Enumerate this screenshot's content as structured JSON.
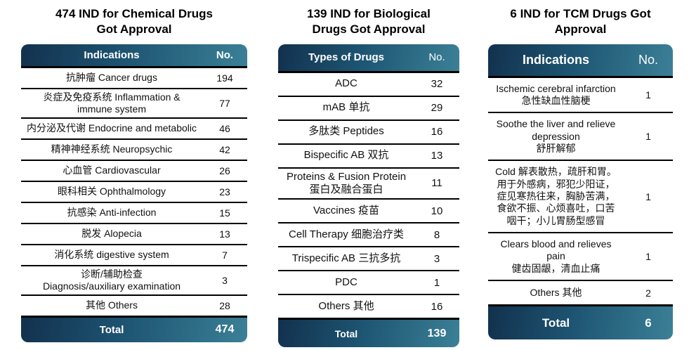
{
  "colors": {
    "gradient_dark": "#12314e",
    "gradient_mid": "#1d5471",
    "gradient_light": "#3b8097",
    "header_text": "#ffffff",
    "line": "#000000",
    "title_text": "#000000"
  },
  "chart_data": [
    {
      "type": "table",
      "title": "474 IND for Chemical Drugs Got Approval",
      "columns": {
        "label": "Indications",
        "no": "No."
      },
      "rows": [
        {
          "label": "抗肿瘤 Cancer drugs",
          "no": "194"
        },
        {
          "label": "炎症及免疫系统 Inflammation & immune system",
          "no": "77"
        },
        {
          "label": "内分泌及代谢 Endocrine and metabolic",
          "no": "46"
        },
        {
          "label": "精神神经系统 Neuropsychic",
          "no": "42"
        },
        {
          "label": "心血管 Cardiovascular",
          "no": "26"
        },
        {
          "label": "眼科相关 Ophthalmology",
          "no": "23"
        },
        {
          "label": "抗感染 Anti-infection",
          "no": "15"
        },
        {
          "label": "脱发 Alopecia",
          "no": "13"
        },
        {
          "label": "消化系统 digestive system",
          "no": "7"
        },
        {
          "label": "诊断/辅助检查",
          "sub": "Diagnosis/auxiliary examination",
          "no": "3"
        },
        {
          "label": "其他 Others",
          "no": "28"
        }
      ],
      "total": {
        "label": "Total",
        "no": "474"
      }
    },
    {
      "type": "table",
      "title": "139 IND for Biological Drugs Got Approval",
      "columns": {
        "label": "Types of Drugs",
        "no": "No."
      },
      "rows": [
        {
          "label": "ADC",
          "no": "32"
        },
        {
          "label": "mAB 单抗",
          "no": "29"
        },
        {
          "label": "多肽类 Peptides",
          "no": "16"
        },
        {
          "label": "Bispecific AB 双抗",
          "no": "13"
        },
        {
          "label": "Proteins & Fusion Protein",
          "sub": "蛋白及融合蛋白",
          "no": "11"
        },
        {
          "label": "Vaccines 疫苗",
          "no": "10"
        },
        {
          "label": "Cell Therapy 细胞治疗类",
          "no": "8"
        },
        {
          "label": "Trispecific AB 三抗多抗",
          "no": "3"
        },
        {
          "label": "PDC",
          "no": "1"
        },
        {
          "label": "Others 其他",
          "no": "16"
        }
      ],
      "total": {
        "label": "Total",
        "no": "139"
      }
    },
    {
      "type": "table",
      "title": "6 IND for TCM Drugs Got Approval",
      "columns": {
        "label": "Indications",
        "no": "No."
      },
      "rows": [
        {
          "label": "Ischemic cerebral infarction",
          "sub": "急性缺血性脑梗",
          "no": "1"
        },
        {
          "label": "Soothe the liver and relieve depression",
          "sub": "舒肝解郁",
          "no": "1"
        },
        {
          "label": "Cold 解表散热，疏肝和胃。 用于外感病，邪犯少阳证，症见寒热往来，胸胁苦满，食欲不振、心烦喜吐，口苦咽干；小儿胃肠型感冒",
          "no": "1"
        },
        {
          "label": "Clears blood and relieves pain",
          "sub": "健齿固龈，清血止痛",
          "no": "1"
        },
        {
          "label": "Others 其他",
          "no": "2"
        }
      ],
      "total": {
        "label": "Total",
        "no": "6"
      }
    }
  ]
}
